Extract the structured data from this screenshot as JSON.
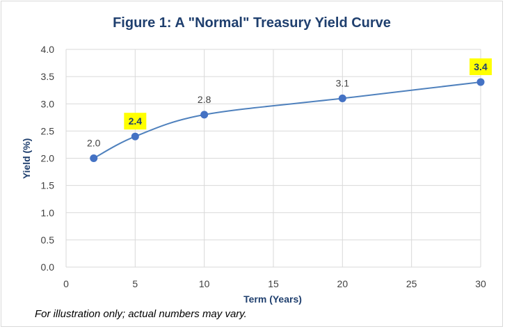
{
  "chart_data": {
    "type": "line",
    "title": "Figure 1: A \"Normal\" Treasury Yield Curve",
    "xlabel": "Term (Years)",
    "ylabel": "Yield (%)",
    "xlim": [
      0,
      30
    ],
    "ylim": [
      0.0,
      4.0
    ],
    "x_ticks": [
      "0",
      "5",
      "10",
      "15",
      "20",
      "25",
      "30"
    ],
    "y_ticks": [
      "0.0",
      "0.5",
      "1.0",
      "1.5",
      "2.0",
      "2.5",
      "3.0",
      "3.5",
      "4.0"
    ],
    "grid": true,
    "smooth": true,
    "series": [
      {
        "x": [
          2,
          5,
          10,
          20,
          30
        ],
        "y": [
          2.0,
          2.4,
          2.8,
          3.1,
          3.4
        ],
        "labels": [
          "2.0",
          "2.4",
          "2.8",
          "3.1",
          "3.4"
        ],
        "highlighted": [
          false,
          true,
          false,
          false,
          true
        ]
      }
    ],
    "colors": {
      "line": "#4f81bd",
      "marker": "#4472c4",
      "highlight_bg": "#ffff00",
      "title": "#1f3f6e",
      "grid": "#d9d9d9"
    }
  },
  "footnote": "For illustration only; actual numbers may vary."
}
